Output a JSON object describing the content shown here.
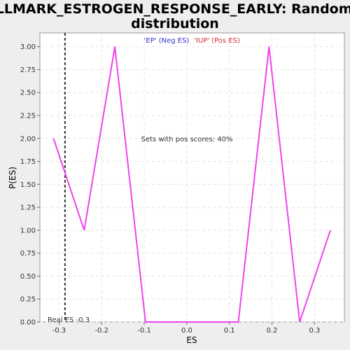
{
  "title_line1": "HALLMARK_ESTROGEN_RESPONSE_EARLY: Random ES",
  "title_line2": "distribution",
  "legend": {
    "neg_label": "'EP' (Neg ES)",
    "pos_label": "'IUP' (Pos ES)",
    "neg_color": "#3333cc",
    "pos_color": "#cc3333"
  },
  "annotation_pos_scores": "Sets with pos scores: 40%",
  "annotation_real_es": "Real ES -0.3",
  "chart_data": {
    "type": "line",
    "xlabel": "ES",
    "ylabel": "P(ES)",
    "xlim": [
      -0.345,
      0.37
    ],
    "ylim": [
      0,
      3.15
    ],
    "xticks": [
      -0.3,
      -0.2,
      -0.1,
      0.0,
      0.1,
      0.2,
      0.3
    ],
    "xtick_labels": [
      "-0.3",
      "-0.2",
      "-0.1",
      "0.0",
      "0.1",
      "0.2",
      "0.3"
    ],
    "yticks": [
      0,
      0.25,
      0.5,
      0.75,
      1.0,
      1.25,
      1.5,
      1.75,
      2.0,
      2.25,
      2.5,
      2.75,
      3.0
    ],
    "ytick_labels": [
      "0.00",
      "0.25",
      "0.50",
      "0.75",
      "1.00",
      "1.25",
      "1.50",
      "1.75",
      "2.00",
      "2.25",
      "2.50",
      "2.75",
      "3.00"
    ],
    "grid": true,
    "series": [
      {
        "color": "#ee44ee",
        "x": [
          -0.313,
          -0.241,
          -0.169,
          -0.097,
          0.121,
          0.193,
          0.265,
          0.337
        ],
        "y": [
          2.0,
          1.0,
          3.0,
          0.0,
          0.0,
          3.0,
          0.0,
          1.0
        ]
      }
    ],
    "real_es": -0.286
  }
}
